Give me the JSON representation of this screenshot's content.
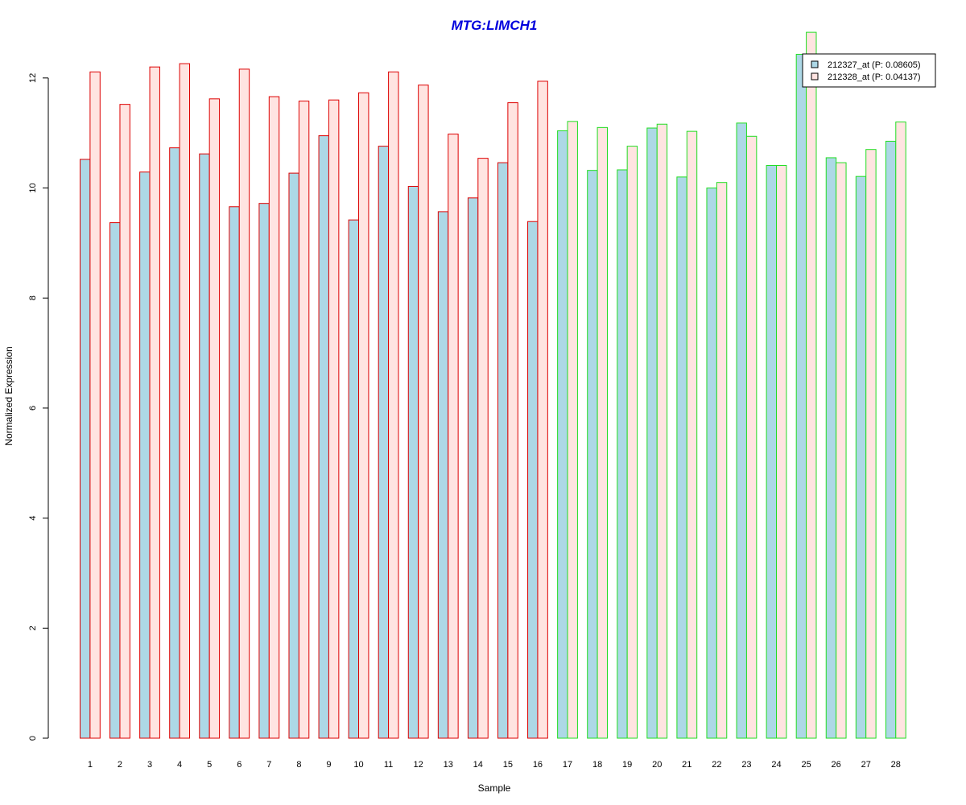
{
  "chart_data": {
    "type": "bar",
    "title": "MTG:LIMCH1",
    "xlabel": "Sample",
    "ylabel": "Normalized Expression",
    "ylim": [
      0,
      12.7
    ],
    "yticks": [
      0,
      2,
      4,
      6,
      8,
      10,
      12
    ],
    "categories": [
      "1",
      "2",
      "3",
      "4",
      "5",
      "6",
      "7",
      "8",
      "9",
      "10",
      "11",
      "12",
      "13",
      "14",
      "15",
      "16",
      "17",
      "18",
      "19",
      "20",
      "21",
      "22",
      "23",
      "24",
      "25",
      "26",
      "27",
      "28"
    ],
    "group_border_colors": [
      "#dd0000",
      "#dd0000",
      "#dd0000",
      "#dd0000",
      "#dd0000",
      "#dd0000",
      "#dd0000",
      "#dd0000",
      "#dd0000",
      "#dd0000",
      "#dd0000",
      "#dd0000",
      "#dd0000",
      "#dd0000",
      "#dd0000",
      "#dd0000",
      "#22dd22",
      "#22dd22",
      "#22dd22",
      "#22dd22",
      "#22dd22",
      "#22dd22",
      "#22dd22",
      "#22dd22",
      "#22dd22",
      "#22dd22",
      "#22dd22",
      "#22dd22"
    ],
    "series": [
      {
        "name": "212327_at (P: 0.08605)",
        "fill": "#add8e6",
        "values": [
          10.52,
          9.37,
          10.29,
          10.73,
          10.62,
          9.66,
          9.72,
          10.27,
          10.95,
          9.42,
          10.76,
          10.03,
          9.57,
          9.82,
          10.46,
          9.39,
          11.04,
          10.32,
          10.33,
          11.09,
          10.2,
          10.0,
          11.18,
          10.41,
          12.43,
          10.55,
          10.21,
          10.85
        ]
      },
      {
        "name": "212328_at (P: 0.04137)",
        "fill": "#ffe4e1",
        "values": [
          12.11,
          11.52,
          12.2,
          12.26,
          11.62,
          12.16,
          11.66,
          11.58,
          11.6,
          11.73,
          12.11,
          11.87,
          10.98,
          10.54,
          11.55,
          11.94,
          11.21,
          11.1,
          10.76,
          11.16,
          11.03,
          10.1,
          10.94,
          10.41,
          12.83,
          10.46,
          10.7,
          11.2
        ]
      }
    ],
    "legend_position": "top-right",
    "colors": {
      "title": "#0000dd"
    }
  }
}
